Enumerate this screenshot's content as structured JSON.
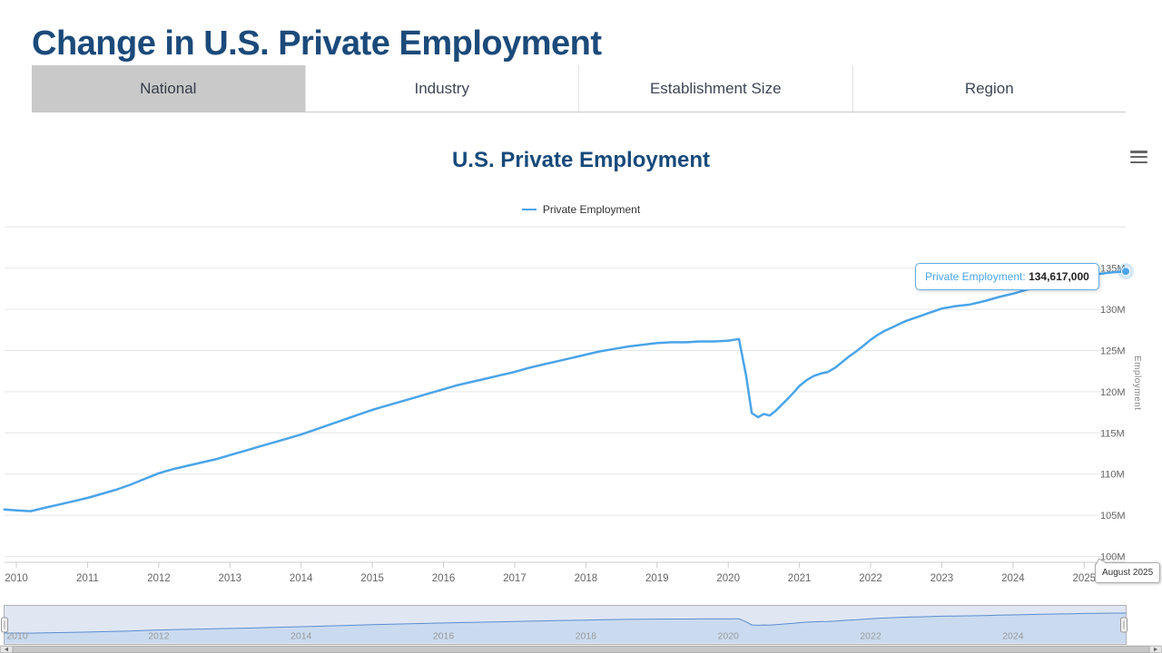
{
  "header": {
    "title": "Change in U.S. Private Employment"
  },
  "tabs": [
    {
      "label": "National",
      "active": true
    },
    {
      "label": "Industry",
      "active": false
    },
    {
      "label": "Establishment Size",
      "active": false
    },
    {
      "label": "Region",
      "active": false
    }
  ],
  "colors": {
    "header_text": "#1b4a7a",
    "series_line": "#4aa4e8",
    "active_tab_bg": "#c9c9c9",
    "navigator_mask": "rgba(102,133,194,0.2)"
  },
  "chart_data": {
    "type": "line",
    "title": "U.S. Private Employment",
    "ylabel": "Employment",
    "xlabel": "",
    "legend_position": "top-center",
    "grid": "horizontal",
    "x_range": [
      2009.834,
      2025.583
    ],
    "y_range": [
      100,
      140
    ],
    "tooltip": {
      "label": "Private Employment:",
      "value": "134,617,000"
    },
    "x_cursor_label": "August 2025",
    "x_ticks": [
      {
        "v": 2010,
        "label": "2010"
      },
      {
        "v": 2011,
        "label": "2011"
      },
      {
        "v": 2012,
        "label": "2012"
      },
      {
        "v": 2013,
        "label": "2013"
      },
      {
        "v": 2014,
        "label": "2014"
      },
      {
        "v": 2015,
        "label": "2015"
      },
      {
        "v": 2016,
        "label": "2016"
      },
      {
        "v": 2017,
        "label": "2017"
      },
      {
        "v": 2018,
        "label": "2018"
      },
      {
        "v": 2019,
        "label": "2019"
      },
      {
        "v": 2020,
        "label": "2020"
      },
      {
        "v": 2021,
        "label": "2021"
      },
      {
        "v": 2022,
        "label": "2022"
      },
      {
        "v": 2023,
        "label": "2023"
      },
      {
        "v": 2024,
        "label": "2024"
      },
      {
        "v": 2025,
        "label": "2025"
      }
    ],
    "y_ticks": [
      {
        "v": 100,
        "label": "100M"
      },
      {
        "v": 105,
        "label": "105M"
      },
      {
        "v": 110,
        "label": "110M"
      },
      {
        "v": 115,
        "label": "115M"
      },
      {
        "v": 120,
        "label": "120M"
      },
      {
        "v": 125,
        "label": "125M"
      },
      {
        "v": 130,
        "label": "130M"
      },
      {
        "v": 135,
        "label": "135M"
      },
      {
        "v": 140,
        "label": ""
      }
    ],
    "navigator_ticks": [
      {
        "v": 2010,
        "label": "2010"
      },
      {
        "v": 2012,
        "label": "2012"
      },
      {
        "v": 2014,
        "label": "2014"
      },
      {
        "v": 2016,
        "label": "2016"
      },
      {
        "v": 2018,
        "label": "2018"
      },
      {
        "v": 2020,
        "label": "2020"
      },
      {
        "v": 2022,
        "label": "2022"
      },
      {
        "v": 2024,
        "label": "2024"
      }
    ],
    "series": [
      {
        "name": "Private Employment",
        "color": "#4aa4e8",
        "unit": "millions of jobs",
        "points": [
          [
            2009.83,
            105.7
          ],
          [
            2010.0,
            105.6
          ],
          [
            2010.2,
            105.5
          ],
          [
            2010.4,
            105.9
          ],
          [
            2010.6,
            106.3
          ],
          [
            2010.8,
            106.7
          ],
          [
            2011.0,
            107.1
          ],
          [
            2011.2,
            107.6
          ],
          [
            2011.4,
            108.1
          ],
          [
            2011.6,
            108.7
          ],
          [
            2011.8,
            109.4
          ],
          [
            2012.0,
            110.1
          ],
          [
            2012.2,
            110.6
          ],
          [
            2012.4,
            111.0
          ],
          [
            2012.6,
            111.4
          ],
          [
            2012.8,
            111.8
          ],
          [
            2013.0,
            112.3
          ],
          [
            2013.2,
            112.8
          ],
          [
            2013.4,
            113.3
          ],
          [
            2013.6,
            113.8
          ],
          [
            2013.8,
            114.3
          ],
          [
            2014.0,
            114.8
          ],
          [
            2014.2,
            115.4
          ],
          [
            2014.4,
            116.0
          ],
          [
            2014.6,
            116.6
          ],
          [
            2014.8,
            117.2
          ],
          [
            2015.0,
            117.8
          ],
          [
            2015.2,
            118.3
          ],
          [
            2015.4,
            118.8
          ],
          [
            2015.6,
            119.3
          ],
          [
            2015.8,
            119.8
          ],
          [
            2016.0,
            120.3
          ],
          [
            2016.2,
            120.8
          ],
          [
            2016.4,
            121.2
          ],
          [
            2016.6,
            121.6
          ],
          [
            2016.8,
            122.0
          ],
          [
            2017.0,
            122.4
          ],
          [
            2017.2,
            122.9
          ],
          [
            2017.4,
            123.3
          ],
          [
            2017.6,
            123.7
          ],
          [
            2017.8,
            124.1
          ],
          [
            2018.0,
            124.5
          ],
          [
            2018.2,
            124.9
          ],
          [
            2018.4,
            125.2
          ],
          [
            2018.6,
            125.5
          ],
          [
            2018.8,
            125.7
          ],
          [
            2019.0,
            125.9
          ],
          [
            2019.2,
            126.0
          ],
          [
            2019.4,
            126.0
          ],
          [
            2019.6,
            126.1
          ],
          [
            2019.8,
            126.1
          ],
          [
            2020.0,
            126.2
          ],
          [
            2020.15,
            126.4
          ],
          [
            2020.25,
            122.0
          ],
          [
            2020.33,
            117.4
          ],
          [
            2020.42,
            116.9
          ],
          [
            2020.5,
            117.3
          ],
          [
            2020.58,
            117.1
          ],
          [
            2020.67,
            117.7
          ],
          [
            2020.75,
            118.4
          ],
          [
            2020.83,
            119.1
          ],
          [
            2020.92,
            119.9
          ],
          [
            2021.0,
            120.7
          ],
          [
            2021.1,
            121.4
          ],
          [
            2021.2,
            121.9
          ],
          [
            2021.3,
            122.2
          ],
          [
            2021.4,
            122.4
          ],
          [
            2021.5,
            122.9
          ],
          [
            2021.6,
            123.6
          ],
          [
            2021.7,
            124.3
          ],
          [
            2021.8,
            124.9
          ],
          [
            2021.9,
            125.6
          ],
          [
            2022.0,
            126.3
          ],
          [
            2022.1,
            126.9
          ],
          [
            2022.2,
            127.4
          ],
          [
            2022.3,
            127.8
          ],
          [
            2022.4,
            128.2
          ],
          [
            2022.5,
            128.6
          ],
          [
            2022.6,
            128.9
          ],
          [
            2022.7,
            129.2
          ],
          [
            2022.8,
            129.5
          ],
          [
            2022.9,
            129.8
          ],
          [
            2023.0,
            130.1
          ],
          [
            2023.2,
            130.4
          ],
          [
            2023.4,
            130.6
          ],
          [
            2023.5,
            130.8
          ],
          [
            2023.6,
            131.0
          ],
          [
            2023.8,
            131.5
          ],
          [
            2024.0,
            131.9
          ],
          [
            2024.2,
            132.4
          ],
          [
            2024.4,
            132.8
          ],
          [
            2024.6,
            133.2
          ],
          [
            2024.8,
            133.6
          ],
          [
            2025.0,
            134.0
          ],
          [
            2025.2,
            134.3
          ],
          [
            2025.4,
            134.5
          ],
          [
            2025.583,
            134.617
          ]
        ]
      }
    ]
  }
}
